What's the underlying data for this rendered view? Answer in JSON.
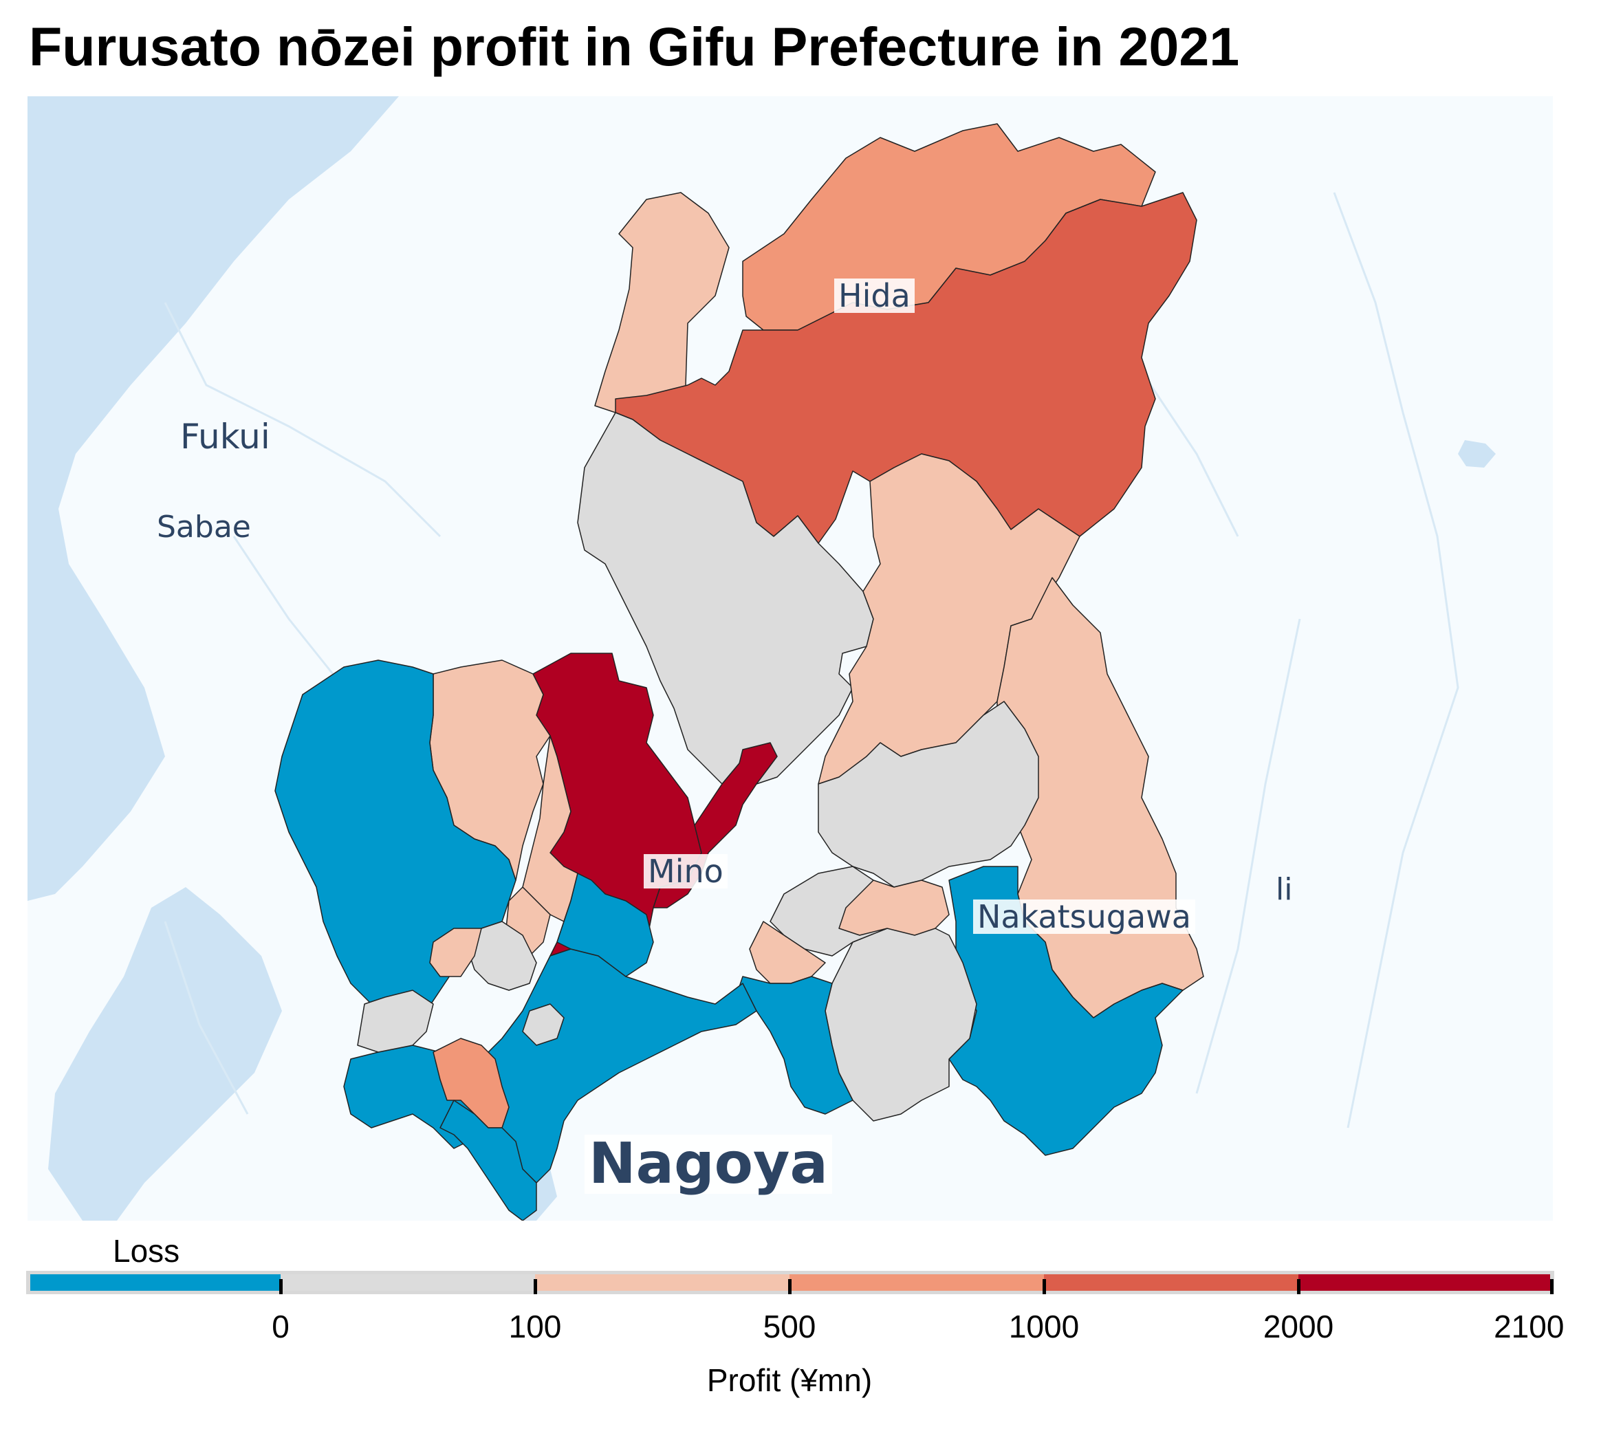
{
  "title": "Furusato nōzei profit in Gifu Prefecture in 2021",
  "places": {
    "hida": "Hida",
    "fukui": "Fukui",
    "sabae": "Sabae",
    "mino": "Mino",
    "nakatsugawa": "Nakatsugawa",
    "iida_partial": "li",
    "nagoya": "Nagoya"
  },
  "legend": {
    "caption": "Loss",
    "axis_title": "Profit (¥mn)",
    "ticks": [
      "0",
      "100",
      "500",
      "1000",
      "2000",
      "2100"
    ],
    "bins": [
      {
        "range": "loss",
        "color": "#0099cc"
      },
      {
        "range": "0-100",
        "color": "#dcdcdc"
      },
      {
        "range": "100-500",
        "color": "#f4c4ae"
      },
      {
        "range": "500-1000",
        "color": "#f19778"
      },
      {
        "range": "1000-2000",
        "color": "#dc5e4b"
      },
      {
        "range": "2000-2100",
        "color": "#b00022"
      }
    ]
  },
  "colors": {
    "loss": "#0099cc",
    "low": "#dcdcdc",
    "mid": "#f4c4ae",
    "high": "#f19778",
    "higher": "#dc5e4b",
    "highest": "#b00022",
    "water": "#cde3f4",
    "land": "#f6fbfe",
    "label": "#2d4463"
  }
}
